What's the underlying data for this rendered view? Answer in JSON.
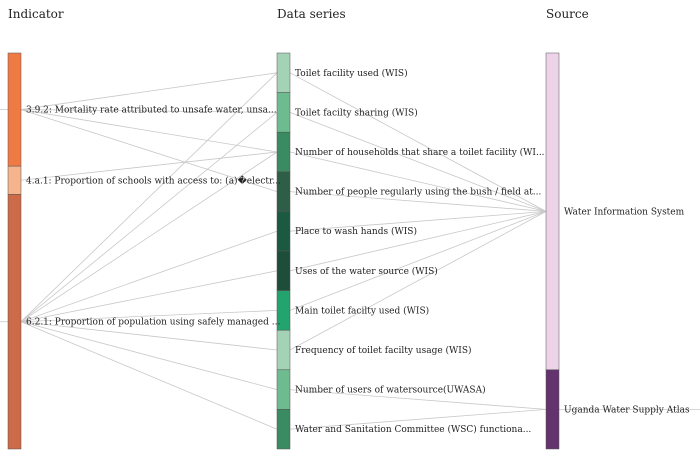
{
  "columns": {
    "indicator": "Indicator",
    "series": "Data series",
    "source": "Source"
  },
  "indicators": [
    {
      "id": "i392",
      "label": "3.9.2: Mortality rate attributed to unsafe water, unsa...",
      "color": "#f07a44",
      "weight": 4
    },
    {
      "id": "i4a1",
      "label": "4.a.1: Proportion of schools with access to: (a)�electr...",
      "color": "#f5b48c",
      "weight": 1
    },
    {
      "id": "i621",
      "label": "6.2.1: Proportion of population using safely managed ...",
      "color": "#cd6a47",
      "weight": 9
    }
  ],
  "series": [
    {
      "id": "s1",
      "label": "Toilet facility used (WIS)",
      "color": "#a3d3b4"
    },
    {
      "id": "s2",
      "label": "Toilet facilty sharing (WIS)",
      "color": "#6dbb8e"
    },
    {
      "id": "s3",
      "label": "Number of households that share a toilet facility (WI...",
      "color": "#3a8b62"
    },
    {
      "id": "s4",
      "label": "Number of people regularly using the bush / field at...",
      "color": "#2e5e48"
    },
    {
      "id": "s5",
      "label": "Place to wash hands (WIS)",
      "color": "#1b5a41"
    },
    {
      "id": "s6",
      "label": "Uses of the water source (WIS)",
      "color": "#1e4e3a"
    },
    {
      "id": "s7",
      "label": "Main toilet facilty used (WIS)",
      "color": "#23a36d"
    },
    {
      "id": "s8",
      "label": "Frequency of toilet facilty usage (WIS)",
      "color": "#a3d3b4"
    },
    {
      "id": "s9",
      "label": "Number of users of watersource(UWASA)",
      "color": "#6dbb8e"
    },
    {
      "id": "s10",
      "label": "Water and Sanitation Committee (WSC) functiona...",
      "color": "#3a8b62"
    }
  ],
  "sources": [
    {
      "id": "wis",
      "label": "Water Information System",
      "color": "#ecd3e8",
      "weight": 8
    },
    {
      "id": "uwsa",
      "label": "Uganda Water Supply Atlas",
      "color": "#63336e",
      "weight": 2
    }
  ],
  "links_indicator_series": [
    [
      "i392",
      "s1"
    ],
    [
      "i392",
      "s2"
    ],
    [
      "i392",
      "s3"
    ],
    [
      "i392",
      "s4"
    ],
    [
      "i4a1",
      "s3"
    ],
    [
      "i621",
      "s1"
    ],
    [
      "i621",
      "s2"
    ],
    [
      "i621",
      "s3"
    ],
    [
      "i621",
      "s5"
    ],
    [
      "i621",
      "s6"
    ],
    [
      "i621",
      "s7"
    ],
    [
      "i621",
      "s8"
    ],
    [
      "i621",
      "s9"
    ],
    [
      "i621",
      "s10"
    ]
  ],
  "links_series_source": [
    [
      "s1",
      "wis"
    ],
    [
      "s2",
      "wis"
    ],
    [
      "s3",
      "wis"
    ],
    [
      "s4",
      "wis"
    ],
    [
      "s5",
      "wis"
    ],
    [
      "s6",
      "wis"
    ],
    [
      "s7",
      "wis"
    ],
    [
      "s8",
      "wis"
    ],
    [
      "s9",
      "uwsa"
    ],
    [
      "s10",
      "uwsa"
    ]
  ]
}
